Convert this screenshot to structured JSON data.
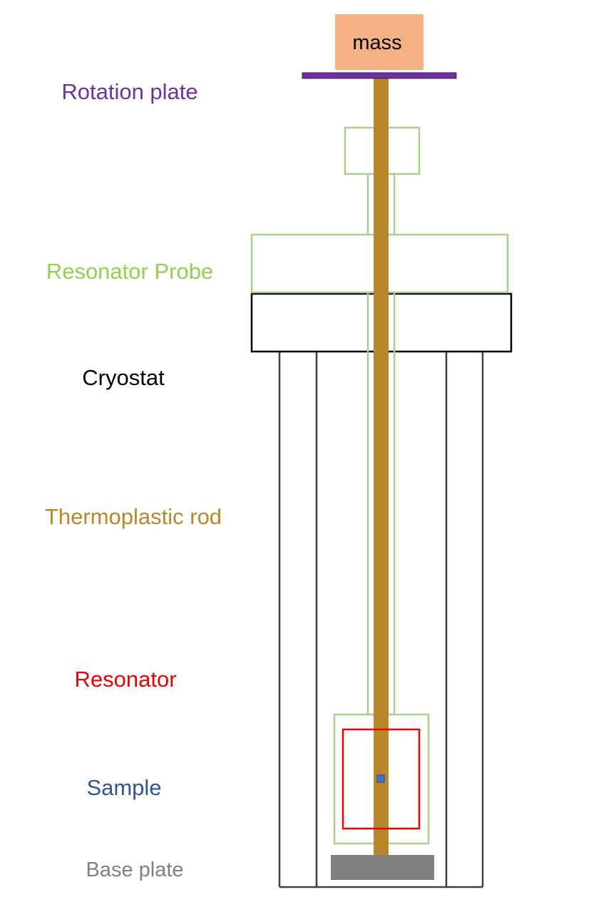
{
  "labels": {
    "mass": "mass",
    "rotation_plate": "Rotation plate",
    "resonator_probe": "Resonator Probe",
    "cryostat": "Cryostat",
    "thermoplastic_rod": "Thermoplastic rod",
    "resonator": "Resonator",
    "sample": "Sample",
    "base_plate": "Base plate"
  },
  "colors": {
    "rotation_plate": "#7030A0",
    "resonator_probe": "#92D050",
    "cryostat": "#000000",
    "cryostat_walls": "#404040",
    "thermoplastic_rod": "#B8862B",
    "resonator": "#EE0000",
    "sample": "#2F5597",
    "sample_fill": "#4472C4",
    "base_plate": "#808080",
    "mass_fill": "#F4B183"
  }
}
